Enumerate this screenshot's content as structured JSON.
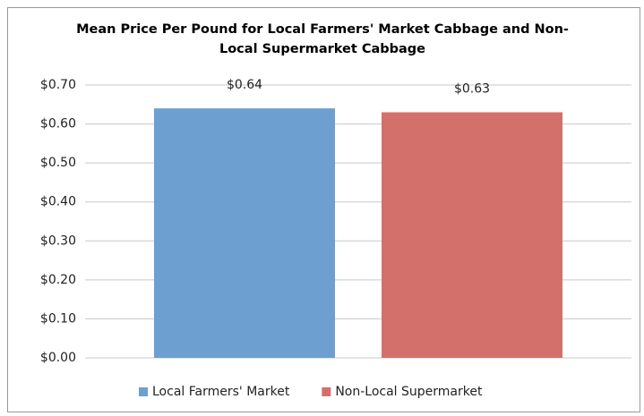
{
  "chart_data": {
    "type": "bar",
    "title": "Mean Price Per Pound for Local Farmers' Market Cabbage and Non-Local Supermarket Cabbage",
    "categories": [
      null
    ],
    "series": [
      {
        "name": "Local Farmers' Market",
        "color": "#6d9fd0",
        "values": [
          0.64
        ],
        "value_labels": [
          "$0.64"
        ]
      },
      {
        "name": "Non-Local Supermarket",
        "color": "#d4706b",
        "values": [
          0.63
        ],
        "value_labels": [
          "$0.63"
        ]
      }
    ],
    "ylim": [
      0,
      0.7
    ],
    "yticks": [
      {
        "value": 0,
        "label": "$0.00"
      },
      {
        "value": 0.1,
        "label": "$0.10"
      },
      {
        "value": 0.2,
        "label": "$0.20"
      },
      {
        "value": 0.3,
        "label": "$0.30"
      },
      {
        "value": 0.4,
        "label": "$0.40"
      },
      {
        "value": 0.5,
        "label": "$0.50"
      },
      {
        "value": 0.6,
        "label": "$0.60"
      },
      {
        "value": 0.7,
        "label": "$0.70"
      }
    ],
    "grid": true,
    "legend": "bottom"
  }
}
